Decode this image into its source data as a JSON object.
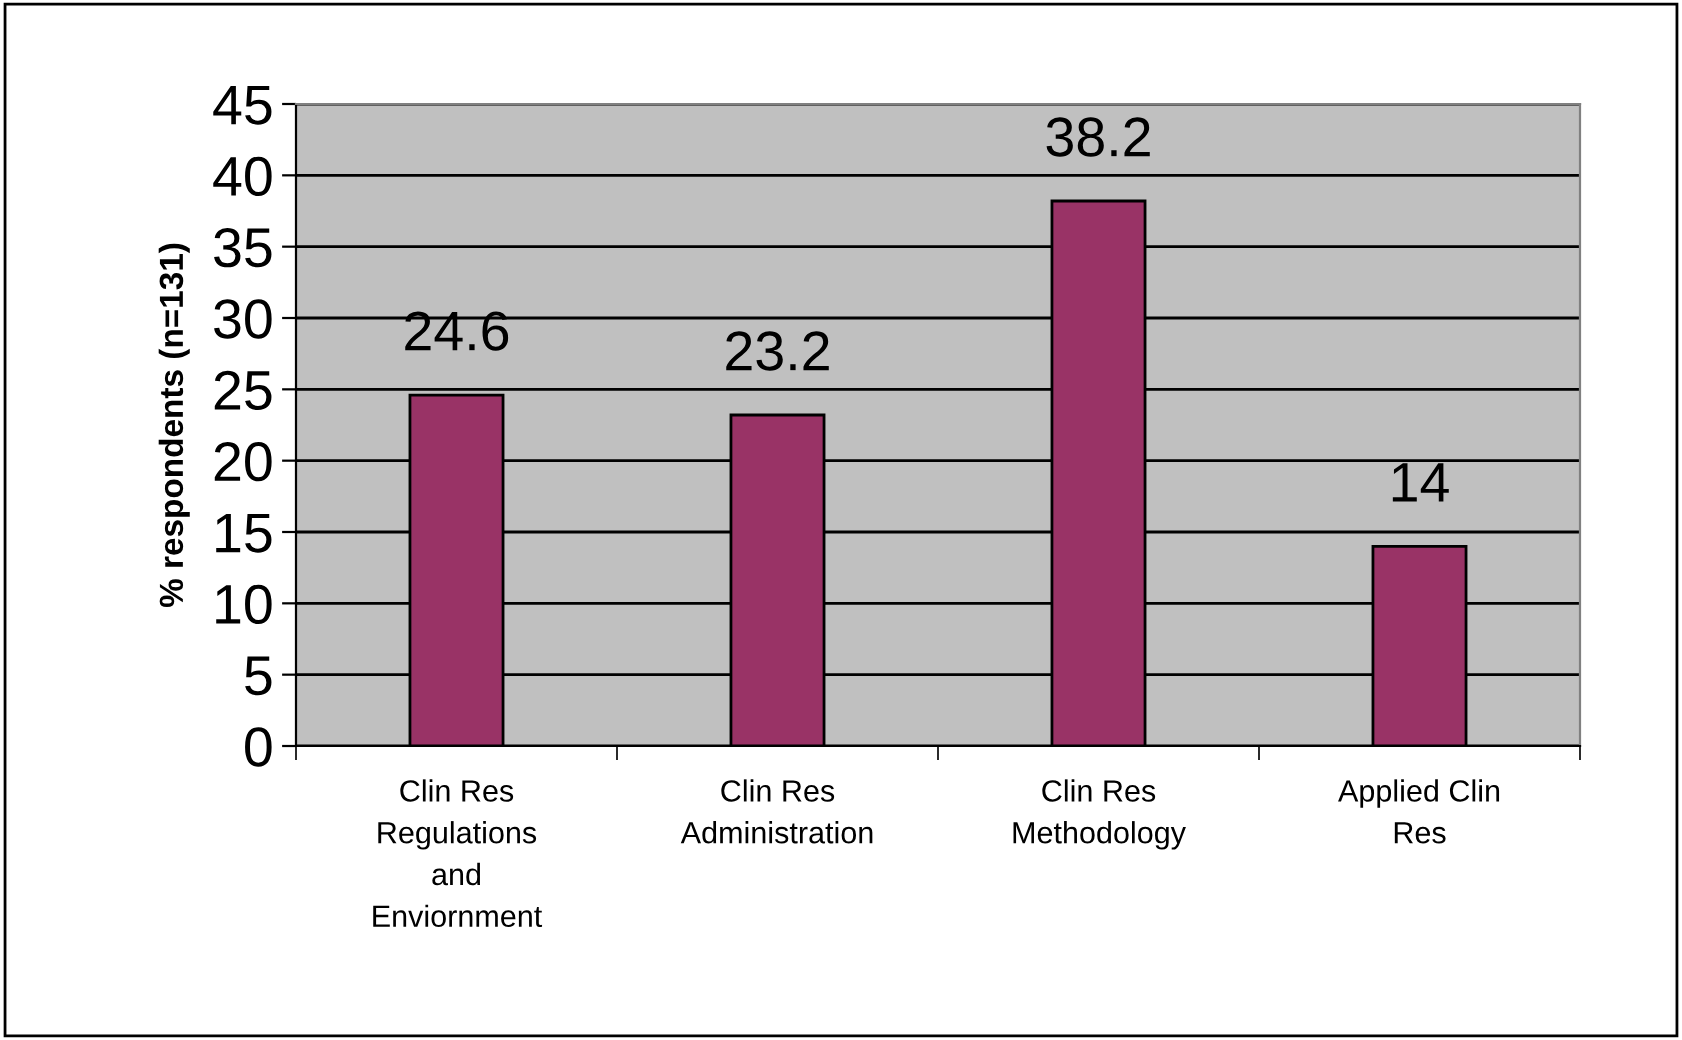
{
  "chart_data": {
    "type": "bar",
    "categories": [
      "Clin Res\nRegulations\nand\nEnviornment",
      "Clin Res\nAdministration",
      "Clin Res\nMethodology",
      "Applied Clin\nRes"
    ],
    "values": [
      24.6,
      23.2,
      38.2,
      14
    ],
    "color": "#993366",
    "ylabel": "% respondents (n=131)",
    "ylim": [
      0,
      45
    ],
    "yticks": [
      0,
      5,
      10,
      15,
      20,
      25,
      30,
      35,
      40,
      45
    ],
    "grid": "y",
    "data_labels": true
  }
}
